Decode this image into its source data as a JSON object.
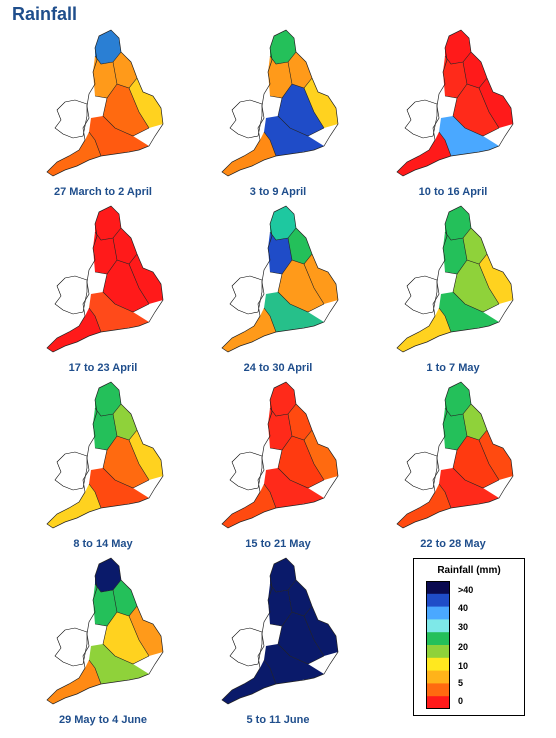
{
  "title": "Rainfall",
  "panels": [
    {
      "label": "27 March to 2 April",
      "colors": [
        "#2a7fd4",
        "#ff9a1a",
        "#ffd21f",
        "#ff9a1a",
        "#ff6a10",
        "#ff5a10",
        "#ff6a10"
      ]
    },
    {
      "label": "3 to 9 April",
      "colors": [
        "#24c05a",
        "#ff9a1a",
        "#ffd21f",
        "#ff9a1a",
        "#1f4cc8",
        "#1f4cc8",
        "#ff8a14"
      ]
    },
    {
      "label": "10 to 16 April",
      "colors": [
        "#ff1a1a",
        "#ff1a1a",
        "#ff1a1a",
        "#ff2a1a",
        "#ff2a1a",
        "#4aa8ff",
        "#ff1a1a"
      ]
    },
    {
      "label": "17 to 23 April",
      "colors": [
        "#ff1a1a",
        "#ff1a1a",
        "#ff1a1a",
        "#ff1a1a",
        "#ff1a1a",
        "#ff4a1a",
        "#ff1a1a"
      ]
    },
    {
      "label": "24 to 30 April",
      "colors": [
        "#1ec8a0",
        "#24c05a",
        "#ff9a1a",
        "#1f4cc8",
        "#ff9a1a",
        "#26c08a",
        "#ff9a1a"
      ]
    },
    {
      "label": "1 to 7 May",
      "colors": [
        "#24c05a",
        "#8fd23a",
        "#ffd21f",
        "#24c05a",
        "#8fd23a",
        "#24c05a",
        "#ffd21f"
      ]
    },
    {
      "label": "8 to 14 May",
      "colors": [
        "#24c05a",
        "#8fd23a",
        "#ffd21f",
        "#24c05a",
        "#ff6a10",
        "#ff4a10",
        "#ffd21f"
      ]
    },
    {
      "label": "15 to 21 May",
      "colors": [
        "#ff2a1a",
        "#ff4a10",
        "#ff6a10",
        "#ff2a1a",
        "#ff3a10",
        "#ff2a1a",
        "#ff4a10"
      ]
    },
    {
      "label": "22 to 28 May",
      "colors": [
        "#24c05a",
        "#8fd23a",
        "#ff4a10",
        "#24c05a",
        "#ff3a10",
        "#ff2a1a",
        "#ff4a10"
      ]
    },
    {
      "label": "29 May to 4 June",
      "colors": [
        "#0a1a6a",
        "#24c05a",
        "#ff9a1a",
        "#24c05a",
        "#ffd21f",
        "#8fd23a",
        "#ff8a14"
      ]
    },
    {
      "label": "5 to 11 June",
      "colors": [
        "#0a1a6a",
        "#0a1a6a",
        "#0a1a6a",
        "#0a1a6a",
        "#0a1a6a",
        "#0a1a6a",
        "#0a1a6a"
      ]
    }
  ],
  "legend": {
    "title": "Rainfall (mm)",
    "labels": [
      ">40",
      "40",
      "30",
      "20",
      "10",
      "5",
      "0"
    ],
    "colors": [
      "#0a0a50",
      "#1f4cc8",
      "#4aa8ff",
      "#7ee8e8",
      "#24c05a",
      "#8fd23a",
      "#ffe81f",
      "#ffb31a",
      "#ff6a10",
      "#ff1a1a"
    ]
  }
}
